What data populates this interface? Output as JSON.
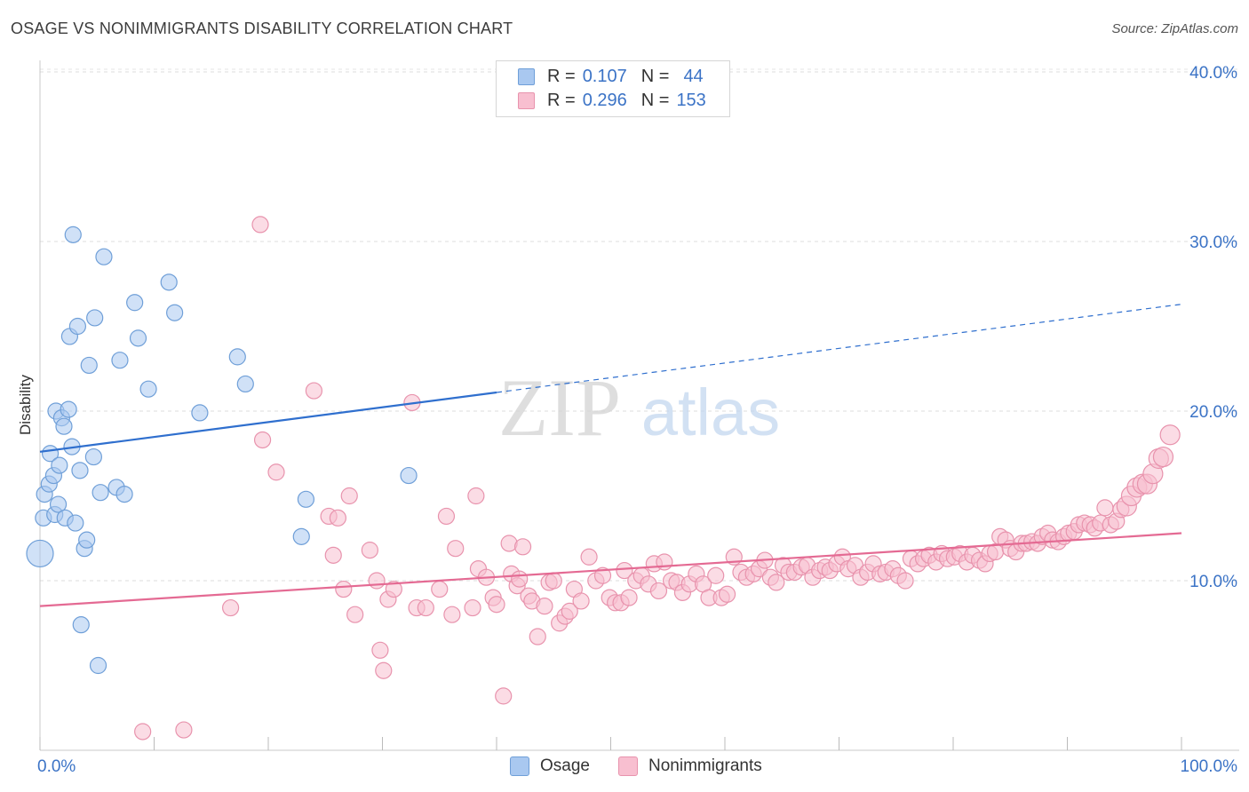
{
  "title": "OSAGE VS NONIMMIGRANTS DISABILITY CORRELATION CHART",
  "source": "Source: ZipAtlas.com",
  "watermark": {
    "zip": "ZIP",
    "atlas": "atlas"
  },
  "legend": {
    "rows": [
      {
        "r_label": "R =",
        "r_value": "0.107",
        "n_label": "N =",
        "n_value": "44",
        "color": "#a9c8f0",
        "border": "#6f9fd8"
      },
      {
        "r_label": "R =",
        "r_value": "0.296",
        "n_label": "N =",
        "n_value": "153",
        "color": "#f8bfd0",
        "border": "#e893ad"
      }
    ]
  },
  "bottom_legend": [
    "Osage",
    "Nonimmigrants"
  ],
  "chart_data": {
    "type": "scatter",
    "title": "OSAGE VS NONIMMIGRANTS DISABILITY CORRELATION CHART",
    "xlabel": "",
    "ylabel": "Disability",
    "xlim": [
      0,
      100
    ],
    "ylim": [
      0,
      42
    ],
    "x_tick_labels": [
      "0.0%",
      "100.0%"
    ],
    "y_ticks": [
      10,
      20,
      30,
      40
    ],
    "y_tick_labels": [
      "10.0%",
      "20.0%",
      "30.0%",
      "40.0%"
    ],
    "grid": true,
    "colors": {
      "osage": "#6f9fd8",
      "osage_fill": "#a9c8f0",
      "osage_line": "#2f6fce",
      "nonimm": "#e893ad",
      "nonimm_fill": "#f8bfd0",
      "nonimm_line": "#e46a93",
      "tick_label": "#3b73c6"
    },
    "series": [
      {
        "name": "Osage",
        "trend": {
          "x": [
            0,
            40,
            100
          ],
          "y": [
            17.6,
            21.1,
            26.3
          ],
          "dashed_from_x": 40
        },
        "points": [
          [
            0.0,
            11.6
          ],
          [
            0.3,
            13.7
          ],
          [
            0.4,
            15.1
          ],
          [
            0.8,
            15.7
          ],
          [
            0.9,
            17.5
          ],
          [
            1.2,
            16.2
          ],
          [
            1.3,
            13.9
          ],
          [
            1.4,
            20.0
          ],
          [
            1.6,
            14.5
          ],
          [
            1.7,
            16.8
          ],
          [
            1.9,
            19.6
          ],
          [
            2.1,
            19.1
          ],
          [
            2.2,
            13.7
          ],
          [
            2.5,
            20.1
          ],
          [
            2.6,
            24.4
          ],
          [
            2.8,
            17.9
          ],
          [
            2.9,
            30.4
          ],
          [
            3.1,
            13.4
          ],
          [
            3.3,
            25.0
          ],
          [
            3.5,
            16.5
          ],
          [
            3.6,
            7.4
          ],
          [
            3.9,
            11.9
          ],
          [
            4.1,
            12.4
          ],
          [
            4.3,
            22.7
          ],
          [
            4.7,
            17.3
          ],
          [
            4.8,
            25.5
          ],
          [
            5.1,
            5.0
          ],
          [
            5.3,
            15.2
          ],
          [
            5.6,
            29.1
          ],
          [
            6.7,
            15.5
          ],
          [
            7.0,
            23.0
          ],
          [
            7.4,
            15.1
          ],
          [
            8.3,
            26.4
          ],
          [
            8.6,
            24.3
          ],
          [
            9.5,
            21.3
          ],
          [
            11.3,
            27.6
          ],
          [
            11.8,
            25.8
          ],
          [
            14.0,
            19.9
          ],
          [
            17.3,
            23.2
          ],
          [
            18.0,
            21.6
          ],
          [
            23.3,
            14.8
          ],
          [
            22.9,
            12.6
          ],
          [
            32.3,
            16.2
          ]
        ]
      },
      {
        "name": "Nonimmigrants",
        "trend": {
          "x": [
            0,
            100
          ],
          "y": [
            8.5,
            12.8
          ]
        },
        "points": [
          [
            9.0,
            1.1
          ],
          [
            12.6,
            1.2
          ],
          [
            16.7,
            8.4
          ],
          [
            19.3,
            31.0
          ],
          [
            19.5,
            18.3
          ],
          [
            20.7,
            16.4
          ],
          [
            24.0,
            21.2
          ],
          [
            25.3,
            13.8
          ],
          [
            25.7,
            11.5
          ],
          [
            26.1,
            13.7
          ],
          [
            26.6,
            9.5
          ],
          [
            27.1,
            15.0
          ],
          [
            27.6,
            8.0
          ],
          [
            28.9,
            11.8
          ],
          [
            29.5,
            10.0
          ],
          [
            29.8,
            5.9
          ],
          [
            30.1,
            4.7
          ],
          [
            30.5,
            8.9
          ],
          [
            31.0,
            9.5
          ],
          [
            32.6,
            20.5
          ],
          [
            33.0,
            8.4
          ],
          [
            33.8,
            8.4
          ],
          [
            35.0,
            9.5
          ],
          [
            35.6,
            13.8
          ],
          [
            36.1,
            8.0
          ],
          [
            36.4,
            11.9
          ],
          [
            37.9,
            8.4
          ],
          [
            38.2,
            15.0
          ],
          [
            38.4,
            10.7
          ],
          [
            39.1,
            10.2
          ],
          [
            39.7,
            9.0
          ],
          [
            40.0,
            8.6
          ],
          [
            40.6,
            3.2
          ],
          [
            41.1,
            12.2
          ],
          [
            41.3,
            10.4
          ],
          [
            41.8,
            9.7
          ],
          [
            42.0,
            10.1
          ],
          [
            42.3,
            12.0
          ],
          [
            42.8,
            9.1
          ],
          [
            43.1,
            8.8
          ],
          [
            43.6,
            6.7
          ],
          [
            44.2,
            8.5
          ],
          [
            44.6,
            9.9
          ],
          [
            45.0,
            10.0
          ],
          [
            45.5,
            7.5
          ],
          [
            46.0,
            7.9
          ],
          [
            46.4,
            8.2
          ],
          [
            46.8,
            9.5
          ],
          [
            47.4,
            8.8
          ],
          [
            48.1,
            11.4
          ],
          [
            48.7,
            10.0
          ],
          [
            49.3,
            10.3
          ],
          [
            49.9,
            9.0
          ],
          [
            50.4,
            8.7
          ],
          [
            50.9,
            8.7
          ],
          [
            51.2,
            10.6
          ],
          [
            51.6,
            9.0
          ],
          [
            52.2,
            10.0
          ],
          [
            52.7,
            10.3
          ],
          [
            53.3,
            9.8
          ],
          [
            53.8,
            11.0
          ],
          [
            54.2,
            9.4
          ],
          [
            54.7,
            11.1
          ],
          [
            55.3,
            10.0
          ],
          [
            55.8,
            9.9
          ],
          [
            56.3,
            9.3
          ],
          [
            56.9,
            9.8
          ],
          [
            57.5,
            10.4
          ],
          [
            58.1,
            9.8
          ],
          [
            58.6,
            9.0
          ],
          [
            59.2,
            10.3
          ],
          [
            59.7,
            9.0
          ],
          [
            60.2,
            9.2
          ],
          [
            60.8,
            11.4
          ],
          [
            61.4,
            10.5
          ],
          [
            61.9,
            10.2
          ],
          [
            62.5,
            10.4
          ],
          [
            63.0,
            10.7
          ],
          [
            63.5,
            11.2
          ],
          [
            64.0,
            10.2
          ],
          [
            64.5,
            9.9
          ],
          [
            65.1,
            10.9
          ],
          [
            65.6,
            10.5
          ],
          [
            66.1,
            10.5
          ],
          [
            66.7,
            10.8
          ],
          [
            67.2,
            10.9
          ],
          [
            67.7,
            10.2
          ],
          [
            68.3,
            10.6
          ],
          [
            68.8,
            10.8
          ],
          [
            69.2,
            10.6
          ],
          [
            69.8,
            11.0
          ],
          [
            70.3,
            11.4
          ],
          [
            70.8,
            10.7
          ],
          [
            71.4,
            10.9
          ],
          [
            71.9,
            10.2
          ],
          [
            72.5,
            10.5
          ],
          [
            73.0,
            11.0
          ],
          [
            73.6,
            10.4
          ],
          [
            74.1,
            10.5
          ],
          [
            74.7,
            10.7
          ],
          [
            75.2,
            10.3
          ],
          [
            75.8,
            10.0
          ],
          [
            76.3,
            11.3
          ],
          [
            76.9,
            11.0
          ],
          [
            77.4,
            11.3
          ],
          [
            77.9,
            11.5
          ],
          [
            78.5,
            11.1
          ],
          [
            79.0,
            11.6
          ],
          [
            79.5,
            11.3
          ],
          [
            80.1,
            11.4
          ],
          [
            80.6,
            11.6
          ],
          [
            81.2,
            11.1
          ],
          [
            81.7,
            11.5
          ],
          [
            82.3,
            11.2
          ],
          [
            82.8,
            11.0
          ],
          [
            83.2,
            11.6
          ],
          [
            83.7,
            11.7
          ],
          [
            84.1,
            12.6
          ],
          [
            84.6,
            12.4
          ],
          [
            85.0,
            11.9
          ],
          [
            85.5,
            11.7
          ],
          [
            86.0,
            12.2
          ],
          [
            86.4,
            12.2
          ],
          [
            86.9,
            12.3
          ],
          [
            87.4,
            12.2
          ],
          [
            87.8,
            12.6
          ],
          [
            88.3,
            12.8
          ],
          [
            88.7,
            12.4
          ],
          [
            89.2,
            12.3
          ],
          [
            89.7,
            12.6
          ],
          [
            90.1,
            12.8
          ],
          [
            90.6,
            12.9
          ],
          [
            91.0,
            13.3
          ],
          [
            91.5,
            13.4
          ],
          [
            92.0,
            13.3
          ],
          [
            92.4,
            13.1
          ],
          [
            92.9,
            13.4
          ],
          [
            93.3,
            14.3
          ],
          [
            93.8,
            13.3
          ],
          [
            94.3,
            13.5
          ],
          [
            94.7,
            14.2
          ],
          [
            95.2,
            14.4
          ],
          [
            95.6,
            15.0
          ],
          [
            96.1,
            15.5
          ],
          [
            96.6,
            15.7
          ],
          [
            97.0,
            15.7
          ],
          [
            97.5,
            16.3
          ],
          [
            98.0,
            17.2
          ],
          [
            98.4,
            17.3
          ],
          [
            99.0,
            18.6
          ]
        ]
      }
    ]
  }
}
